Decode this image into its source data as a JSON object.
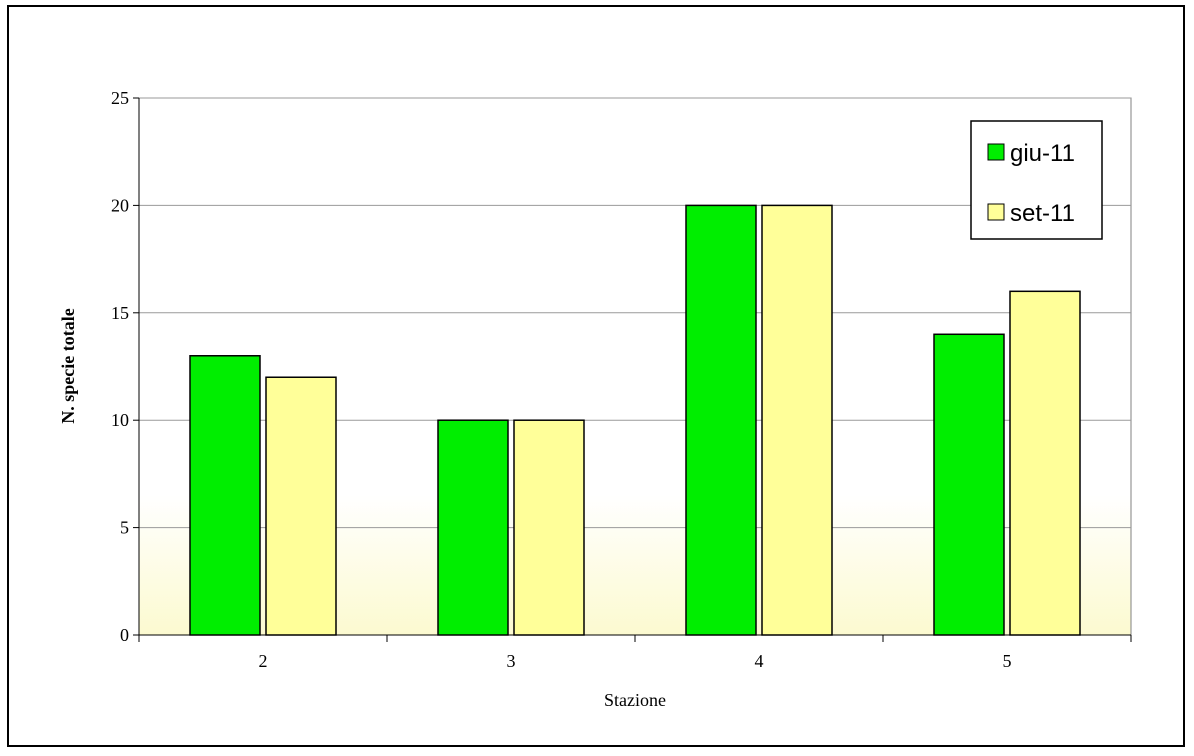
{
  "chart_data": {
    "type": "bar",
    "title": "",
    "xlabel": "Stazione",
    "ylabel": "N. specie totale",
    "categories": [
      "2",
      "3",
      "4",
      "5"
    ],
    "series": [
      {
        "name": "giu-11",
        "values": [
          13,
          10,
          20,
          14
        ],
        "color": "#00ee00"
      },
      {
        "name": "set-11",
        "values": [
          12,
          10,
          20,
          16
        ],
        "color": "#ffff99"
      }
    ],
    "ylim": [
      0,
      25
    ],
    "yticks": [
      0,
      5,
      10,
      15,
      20,
      25
    ],
    "grid": true,
    "legend_position": "top-right",
    "plot_background": "gradient white to pale yellow"
  }
}
